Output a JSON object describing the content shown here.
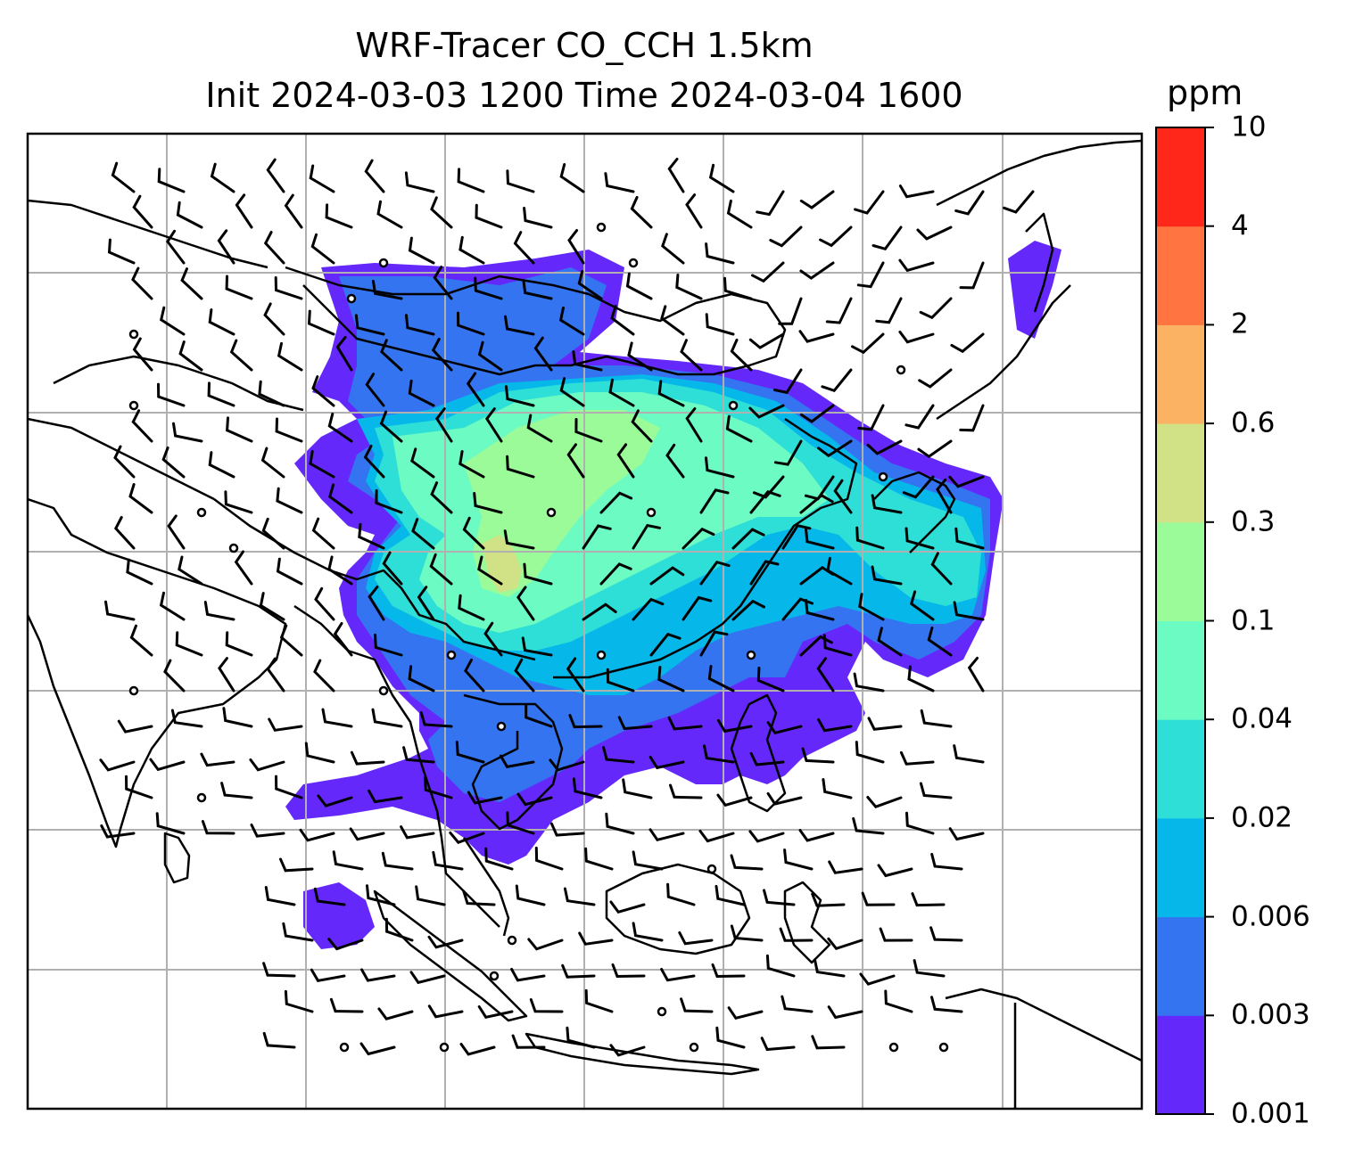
{
  "title": {
    "line1": "WRF-Tracer CO_CCH 1.5km",
    "line2": "Init 2024-03-03 1200 Time 2024-03-04 1600"
  },
  "colorbar": {
    "unit": "ppm",
    "levels": [
      "0.001",
      "0.003",
      "0.006",
      "0.02",
      "0.04",
      "0.1",
      "0.3",
      "0.6",
      "2",
      "4",
      "10"
    ],
    "colors": [
      "#6528fb",
      "#3574f1",
      "#06b7e9",
      "#2ddfd6",
      "#6cfbc2",
      "#9bfb99",
      "#d1e286",
      "#fbb363",
      "#ff7441",
      "#ff2719"
    ]
  },
  "map": {
    "gridline_color": "#b0b0b0",
    "coastline_color": "#000000",
    "wind_barb_color": "#000000",
    "features": [
      "concentration-field",
      "wind-barbs",
      "calm-wind-circles",
      "coastlines",
      "gridlines"
    ]
  }
}
